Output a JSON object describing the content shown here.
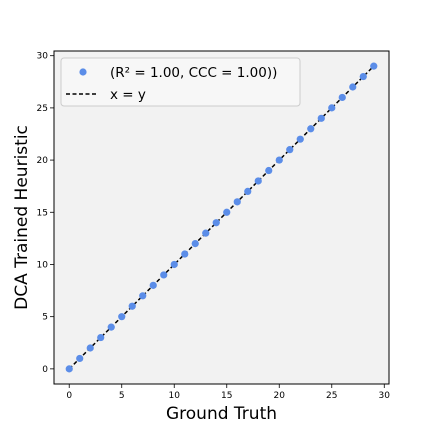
{
  "chart_data": {
    "type": "scatter",
    "xlabel": "Ground Truth",
    "ylabel": "DCA Trained Heuristic",
    "xlim": [
      -1.45,
      30.45
    ],
    "ylim": [
      -1.45,
      30.45
    ],
    "x_ticks": [
      "0",
      "5",
      "10",
      "15",
      "20",
      "25",
      "30"
    ],
    "y_ticks": [
      "0",
      "5",
      "10",
      "15",
      "20",
      "25",
      "30"
    ],
    "grid": false,
    "legend_placement": "top-left",
    "colors": {
      "points": "#5b8de8",
      "background": "#f2f2f2",
      "reference_line": "#000000"
    },
    "series": [
      {
        "name": "(R² = 1.00, CCC = 1.00))",
        "kind": "scatter",
        "x": [
          0,
          1,
          2,
          3,
          4,
          5,
          6,
          7,
          8,
          9,
          10,
          11,
          12,
          13,
          14,
          15,
          16,
          17,
          18,
          19,
          20,
          21,
          22,
          23,
          24,
          25,
          26,
          27,
          28,
          29
        ],
        "y": [
          0,
          1,
          2,
          3,
          4,
          5,
          6,
          7,
          8,
          9,
          10,
          11,
          12,
          13,
          14,
          15,
          16,
          17,
          18,
          19,
          20,
          21,
          22,
          23,
          24,
          25,
          26,
          27,
          28,
          29
        ]
      },
      {
        "name": "x = y",
        "kind": "line",
        "style": "dashed",
        "x": [
          0,
          29
        ],
        "y": [
          0,
          29
        ]
      }
    ]
  }
}
